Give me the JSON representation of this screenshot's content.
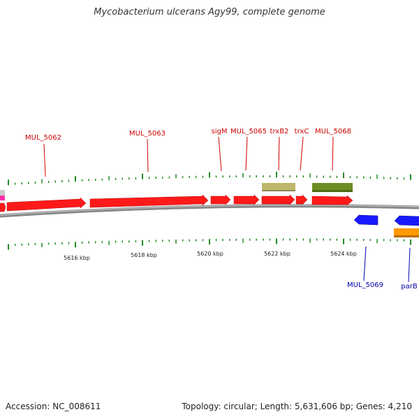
{
  "title": "Mycobacterium ulcerans Agy99, complete genome",
  "footer": {
    "accession": "Accession: NC_008611",
    "summary": "Topology: circular; Length: 5,631,606 bp; Genes: 4,210"
  },
  "colors": {
    "cds": "#ff1a1a",
    "forward_label": "#cc0000",
    "reverse_label": "#0000aa",
    "reverse_gene": "#1a1aff",
    "parb_gene": "#ff9900",
    "trna_khaki": "#bdb76b",
    "rrna_olive": "#6b8e23",
    "tick": "#228b22",
    "backbone": "#888888"
  },
  "ticks": [
    "5616 kbp",
    "5618 kbp",
    "5620 kbp",
    "5622 kbp",
    "5624 kbp"
  ],
  "forward_labels": [
    "MUL_5062",
    "MUL_5063",
    "sigM",
    "MUL_5065",
    "trxB2",
    "trxC",
    "MUL_5068"
  ],
  "reverse_labels": [
    "MUL_5069",
    "parB"
  ]
}
